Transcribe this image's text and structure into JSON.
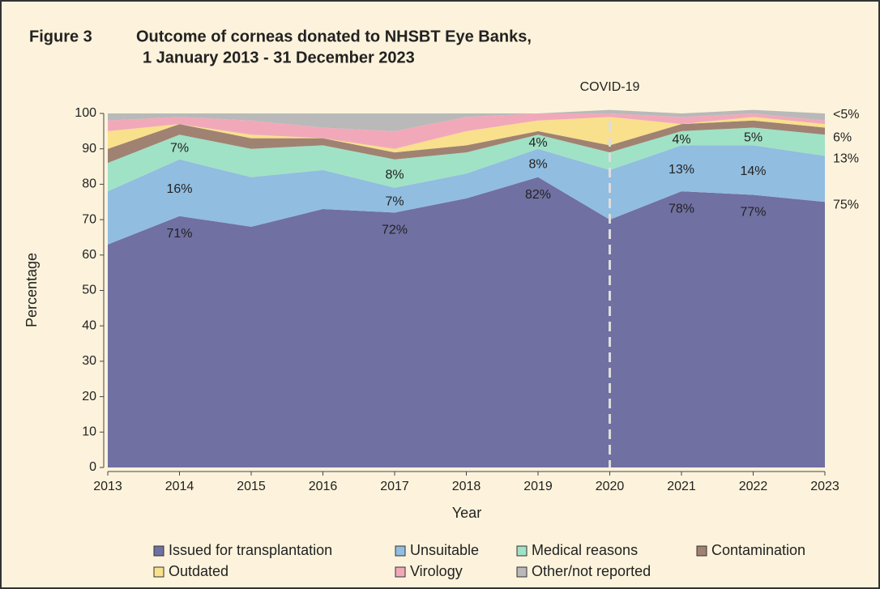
{
  "chart_data": {
    "type": "stacked_area",
    "figure_label": "Figure 3",
    "title": [
      "Outcome of corneas donated to NHSBT Eye Banks,",
      "1 January 2013 - 31 December 2023"
    ],
    "x_label": "Year",
    "y_label": "Percentage",
    "x": [
      2013,
      2014,
      2015,
      2016,
      2017,
      2018,
      2019,
      2020,
      2021,
      2022,
      2023
    ],
    "xlim": [
      2013,
      2023
    ],
    "xticks": [
      2013,
      2014,
      2015,
      2016,
      2017,
      2018,
      2019,
      2020,
      2021,
      2022,
      2023
    ],
    "ylim": [
      0,
      100
    ],
    "yticks": [
      0,
      10,
      20,
      30,
      40,
      50,
      60,
      70,
      80,
      90,
      100
    ],
    "series": [
      {
        "name": "Issued for transplantation",
        "color": "#7070a2",
        "values": [
          63,
          71,
          68,
          73,
          72,
          76,
          82,
          70,
          78,
          77,
          75
        ],
        "value_labels": [
          null,
          "71%",
          null,
          null,
          "72%",
          null,
          "82%",
          null,
          "78%",
          "77%",
          "75%"
        ]
      },
      {
        "name": "Unsuitable",
        "color": "#91bde0",
        "values": [
          15,
          16,
          14,
          11,
          7,
          7,
          8,
          14,
          13,
          14,
          13
        ],
        "value_labels": [
          null,
          "16%",
          null,
          null,
          "7%",
          null,
          "8%",
          null,
          "13%",
          "14%",
          "13%"
        ]
      },
      {
        "name": "Medical reasons",
        "color": "#a0e2c6",
        "values": [
          8,
          7,
          8,
          7,
          8,
          6,
          4,
          5,
          4,
          5,
          6
        ],
        "value_labels": [
          null,
          "7%",
          null,
          null,
          "8%",
          null,
          "4%",
          null,
          "4%",
          "5%",
          "6%"
        ]
      },
      {
        "name": "Contamination",
        "color": "#a08272",
        "values": [
          4,
          3,
          3,
          2,
          2,
          2,
          1,
          2,
          2,
          2,
          2
        ]
      },
      {
        "name": "Outdated",
        "color": "#f9e08c",
        "values": [
          5,
          0,
          1,
          0,
          1,
          4,
          3,
          8,
          0,
          1,
          1
        ]
      },
      {
        "name": "Virology",
        "color": "#f1a9ba",
        "values": [
          3,
          2,
          4,
          3,
          5,
          4,
          2,
          1,
          2,
          1,
          1
        ]
      },
      {
        "name": "Other/not reported",
        "color": "#b9b9b9",
        "values": [
          2,
          1,
          2,
          4,
          5,
          1,
          0,
          1,
          1,
          1,
          2
        ]
      }
    ],
    "annotations": [
      {
        "text": "COVID-19",
        "x": 2020
      },
      {
        "text": "<5%"
      }
    ],
    "legend": "bottom"
  }
}
